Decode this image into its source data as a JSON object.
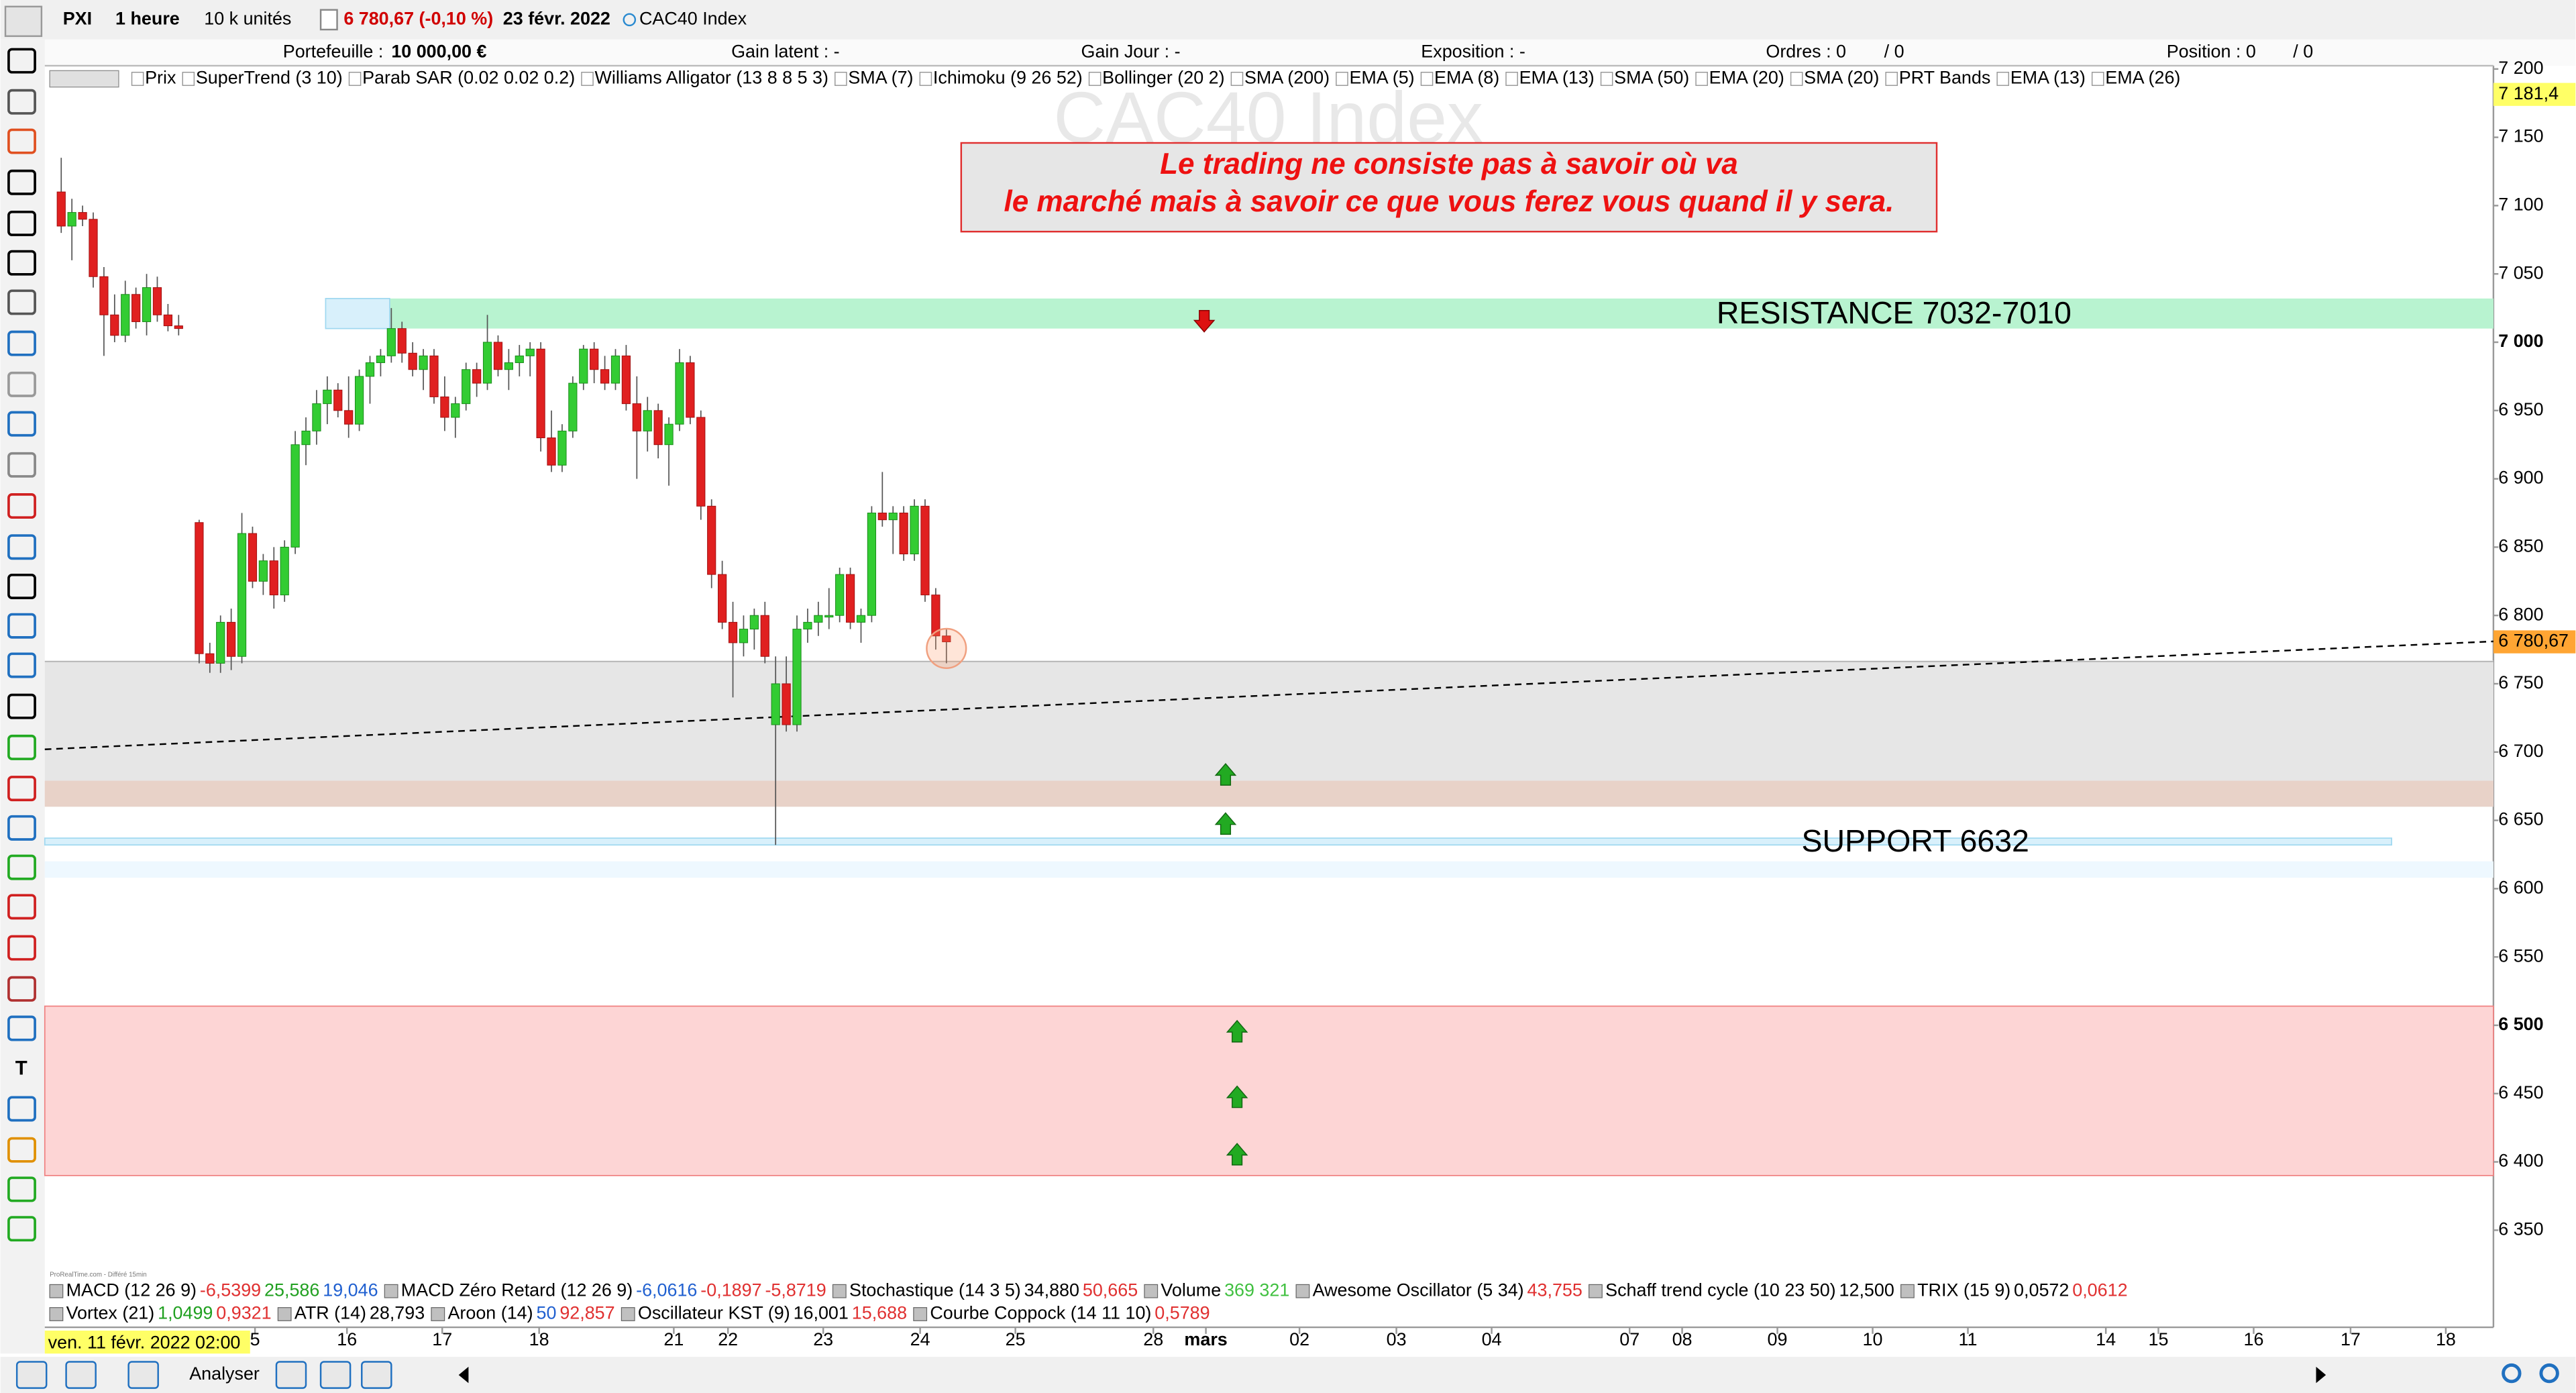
{
  "toolbar": {
    "instrument": "PXI",
    "period": "1 heure",
    "units": "10 k unités",
    "quote": "6 780,67 (-0,10 %)",
    "date": "23 févr. 2022",
    "name": "CAC40 Index"
  },
  "account": {
    "portfolio_label": "Portefeuille :",
    "portfolio_value": "10 000,00 €",
    "latent": "Gain latent : -",
    "day": "Gain Jour : -",
    "exposure": "Exposition : -",
    "orders": "Ordres : 0",
    "orders_sell": "/ 0",
    "position": "Position : 0",
    "position_sell": "/ 0"
  },
  "indicators": [
    "Prix",
    "SuperTrend (3 10)",
    "Parab SAR (0.02 0.02 0.2)",
    "Williams Alligator (13 8 8 5 3)",
    "SMA (7)",
    "Ichimoku (9 26 52)",
    "Bollinger (20 2)",
    "SMA (200)",
    "EMA (5)",
    "EMA (8)",
    "EMA (13)",
    "SMA (50)",
    "EMA (20)",
    "SMA (20)",
    "PRT Bands",
    "EMA (13)",
    "EMA (26)"
  ],
  "quote_box": [
    "Le trading ne consiste pas à savoir où va",
    "le marché mais à savoir ce que vous ferez vous quand il y sera."
  ],
  "chart_data": {
    "type": "candlestick",
    "title": "CAC40 Index",
    "ylim": [
      6315,
      7200
    ],
    "yticks": [
      {
        "value": 6350,
        "label": "6 350"
      },
      {
        "value": 6400,
        "label": "6 400"
      },
      {
        "value": 6450,
        "label": "6 450"
      },
      {
        "value": 6500,
        "label": "6 500",
        "bold": true
      },
      {
        "value": 6550,
        "label": "6 550"
      },
      {
        "value": 6600,
        "label": "6 600"
      },
      {
        "value": 6650,
        "label": "6 650"
      },
      {
        "value": 6700,
        "label": "6 700"
      },
      {
        "value": 6750,
        "label": "6 750"
      },
      {
        "value": 6800,
        "label": "6 800"
      },
      {
        "value": 6850,
        "label": "6 850"
      },
      {
        "value": 6900,
        "label": "6 900"
      },
      {
        "value": 6950,
        "label": "6 950"
      },
      {
        "value": 7000,
        "label": "7 000",
        "bold": true
      },
      {
        "value": 7050,
        "label": "7 050"
      },
      {
        "value": 7100,
        "label": "7 100"
      },
      {
        "value": 7150,
        "label": "7 150"
      },
      {
        "value": 7200,
        "label": "7 200"
      }
    ],
    "x_axis_labels": [
      "5",
      "16",
      "17",
      "18",
      "21",
      "22",
      "23",
      "24",
      "25",
      "28",
      "mars",
      "02",
      "03",
      "04",
      "07",
      "08",
      "09",
      "10",
      "11",
      "14",
      "15",
      "16",
      "17",
      "18"
    ],
    "up_color": "#33cc33",
    "down_color": "#e02020",
    "candles": [
      [
        7110,
        7135,
        7080,
        7085
      ],
      [
        7085,
        7105,
        7060,
        7095
      ],
      [
        7095,
        7100,
        7085,
        7090
      ],
      [
        7090,
        7095,
        7040,
        7048
      ],
      [
        7048,
        7055,
        6990,
        7020
      ],
      [
        7020,
        7035,
        7000,
        7005
      ],
      [
        7005,
        7045,
        7000,
        7035
      ],
      [
        7035,
        7040,
        7010,
        7015
      ],
      [
        7015,
        7050,
        7005,
        7040
      ],
      [
        7040,
        7048,
        7015,
        7020
      ],
      [
        7020,
        7028,
        7008,
        7012
      ],
      [
        7012,
        7020,
        7005,
        7010
      ],
      [
        6868,
        6870,
        6765,
        6772
      ],
      [
        6772,
        6780,
        6758,
        6765
      ],
      [
        6765,
        6800,
        6758,
        6795
      ],
      [
        6795,
        6805,
        6760,
        6770
      ],
      [
        6770,
        6875,
        6765,
        6860
      ],
      [
        6860,
        6865,
        6820,
        6825
      ],
      [
        6825,
        6845,
        6815,
        6840
      ],
      [
        6840,
        6850,
        6805,
        6815
      ],
      [
        6815,
        6855,
        6810,
        6850
      ],
      [
        6850,
        6935,
        6845,
        6925
      ],
      [
        6925,
        6945,
        6910,
        6935
      ],
      [
        6935,
        6965,
        6925,
        6955
      ],
      [
        6955,
        6975,
        6940,
        6965
      ],
      [
        6965,
        6970,
        6945,
        6950
      ],
      [
        6950,
        6975,
        6930,
        6940
      ],
      [
        6940,
        6980,
        6935,
        6975
      ],
      [
        6975,
        6990,
        6955,
        6985
      ],
      [
        6985,
        6995,
        6975,
        6990
      ],
      [
        6990,
        7025,
        6985,
        7010
      ],
      [
        7010,
        7015,
        6985,
        6992
      ],
      [
        6992,
        7000,
        6975,
        6980
      ],
      [
        6980,
        6995,
        6965,
        6990
      ],
      [
        6990,
        6995,
        6955,
        6960
      ],
      [
        6960,
        6975,
        6935,
        6945
      ],
      [
        6945,
        6960,
        6930,
        6955
      ],
      [
        6955,
        6985,
        6950,
        6980
      ],
      [
        6980,
        6985,
        6960,
        6970
      ],
      [
        6970,
        7020,
        6965,
        7000
      ],
      [
        7000,
        7005,
        6975,
        6980
      ],
      [
        6980,
        6995,
        6965,
        6985
      ],
      [
        6985,
        6998,
        6975,
        6990
      ],
      [
        6990,
        7000,
        6975,
        6995
      ],
      [
        6995,
        7000,
        6920,
        6930
      ],
      [
        6930,
        6950,
        6905,
        6910
      ],
      [
        6910,
        6940,
        6905,
        6935
      ],
      [
        6935,
        6975,
        6930,
        6970
      ],
      [
        6970,
        6998,
        6965,
        6995
      ],
      [
        6995,
        7000,
        6970,
        6980
      ],
      [
        6980,
        6990,
        6965,
        6970
      ],
      [
        6970,
        6995,
        6965,
        6990
      ],
      [
        6990,
        6998,
        6950,
        6955
      ],
      [
        6955,
        6975,
        6900,
        6935
      ],
      [
        6935,
        6960,
        6920,
        6950
      ],
      [
        6950,
        6955,
        6915,
        6925
      ],
      [
        6925,
        6945,
        6895,
        6940
      ],
      [
        6940,
        6995,
        6935,
        6985
      ],
      [
        6985,
        6990,
        6940,
        6945
      ],
      [
        6945,
        6950,
        6870,
        6880
      ],
      [
        6880,
        6885,
        6820,
        6830
      ],
      [
        6830,
        6840,
        6790,
        6795
      ],
      [
        6795,
        6810,
        6740,
        6780
      ],
      [
        6780,
        6800,
        6770,
        6790
      ],
      [
        6790,
        6805,
        6775,
        6800
      ],
      [
        6800,
        6810,
        6765,
        6770
      ],
      [
        6720,
        6770,
        6632,
        6750
      ],
      [
        6750,
        6770,
        6715,
        6720
      ],
      [
        6720,
        6800,
        6715,
        6790
      ],
      [
        6790,
        6805,
        6780,
        6795
      ],
      [
        6795,
        6810,
        6785,
        6800
      ],
      [
        6800,
        6820,
        6790,
        6800
      ],
      [
        6800,
        6835,
        6795,
        6830
      ],
      [
        6830,
        6835,
        6790,
        6795
      ],
      [
        6795,
        6805,
        6780,
        6800
      ],
      [
        6800,
        6880,
        6795,
        6875
      ],
      [
        6875,
        6905,
        6865,
        6870
      ],
      [
        6870,
        6880,
        6845,
        6875
      ],
      [
        6875,
        6880,
        6840,
        6845
      ],
      [
        6845,
        6885,
        6840,
        6880
      ],
      [
        6880,
        6885,
        6810,
        6815
      ],
      [
        6815,
        6820,
        6775,
        6785
      ],
      [
        6785,
        6790,
        6765,
        6780.67
      ]
    ],
    "zones": [
      {
        "top": 6767,
        "bottom": 6660,
        "color": "#e6e6e6"
      },
      {
        "top": 6679,
        "bottom": 6660,
        "color": "#e8d2c8"
      },
      {
        "top": 6514,
        "bottom": 6390,
        "color": "#fdd5d5"
      },
      {
        "top": 6620,
        "bottom": 6608,
        "color": "#eef8ff"
      },
      {
        "top": 6637,
        "bottom": 6632,
        "color": "#d8f0fb",
        "label": "SUPPORT 6632"
      },
      {
        "top": 7032,
        "bottom": 7010,
        "color": "#b8f3d0",
        "label": "RESISTANCE 7032-7010"
      }
    ],
    "trendline": [
      6702,
      6781
    ],
    "markers": [
      {
        "dir": "down",
        "value": 7016
      },
      {
        "dir": "up",
        "value": 6683
      },
      {
        "dir": "up",
        "value": 6647
      },
      {
        "dir": "up",
        "value": 6495
      },
      {
        "dir": "up",
        "value": 6447
      },
      {
        "dir": "up",
        "value": 6405
      }
    ],
    "price_labels": [
      {
        "value": 7181.4,
        "label": "7 181,4",
        "color": "#ffff66"
      },
      {
        "value": 6780.67,
        "label": "6 780,67",
        "color": "#ffa533"
      }
    ]
  },
  "lower_indicators": [
    [
      {
        "name": "MACD (12 26 9)",
        "values": [
          [
            "-6,5399",
            "#e03030"
          ],
          [
            "25,586",
            "#20a020"
          ],
          [
            "19,046",
            "#2060d0"
          ]
        ]
      },
      {
        "name": "MACD Zéro Retard (12 26 9)",
        "values": [
          [
            "-6,0616",
            "#2060d0"
          ],
          [
            "-0,1897",
            "#e03030"
          ],
          [
            "-5,8719",
            "#e03030"
          ]
        ]
      },
      {
        "name": "Stochastique (14 3 5)",
        "values": [
          [
            "34,880",
            "#000"
          ],
          [
            "50,665",
            "#e03030"
          ]
        ]
      },
      {
        "name": "Volume",
        "values": [
          [
            "369 321",
            "#40c040"
          ]
        ]
      },
      {
        "name": "Awesome Oscillator (5 34)",
        "values": [
          [
            "43,755",
            "#e03030"
          ]
        ]
      },
      {
        "name": "Schaff trend cycle (10 23 50)",
        "values": [
          [
            "12,500",
            "#000"
          ]
        ]
      },
      {
        "name": "TRIX (15 9)",
        "values": [
          [
            "0,0572",
            "#000"
          ],
          [
            "0,0612",
            "#e03030"
          ]
        ]
      }
    ],
    [
      {
        "name": "Vortex (21)",
        "values": [
          [
            "1,0499",
            "#20a020"
          ],
          [
            "0,9321",
            "#e03030"
          ]
        ]
      },
      {
        "name": "ATR (14)",
        "values": [
          [
            "28,793",
            "#000"
          ]
        ]
      },
      {
        "name": "Aroon (14)",
        "values": [
          [
            "50",
            "#2060d0"
          ],
          [
            "92,857",
            "#e03030"
          ]
        ]
      },
      {
        "name": "Oscillateur KST (9)",
        "values": [
          [
            "16,001",
            "#000"
          ],
          [
            "15,688",
            "#e03030"
          ]
        ]
      },
      {
        "name": "Courbe Coppock (14 11 10)",
        "values": [
          [
            "0,5789",
            "#e03030"
          ]
        ]
      }
    ]
  ],
  "credit": "ProRealTime.com - Différé 15min",
  "tools": [
    "T"
  ],
  "status": {
    "cursor_date": "ven. 11 févr. 2022 02:00",
    "analyze": "Analyser"
  }
}
